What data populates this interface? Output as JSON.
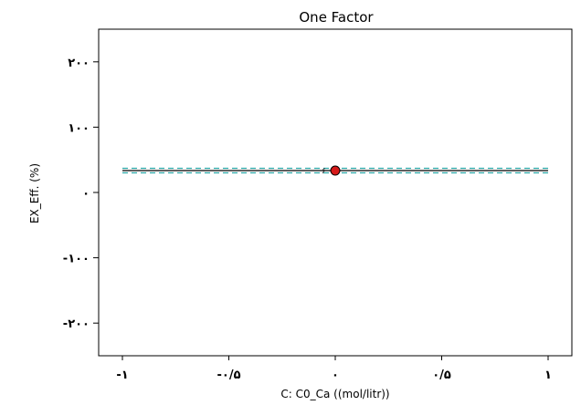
{
  "chart_data": {
    "type": "line",
    "title": "One Factor",
    "xlabel": "C: C0_Ca ((mol/litr))",
    "ylabel": "EX_Eff. (%)",
    "xlim": [
      -1,
      1
    ],
    "ylim": [
      -250,
      250
    ],
    "x_ticks": [
      {
        "value": -1,
        "label": "-١"
      },
      {
        "value": -0.5,
        "label": "-٠/۵"
      },
      {
        "value": 0,
        "label": "٠"
      },
      {
        "value": 0.5,
        "label": "٠/۵"
      },
      {
        "value": 1,
        "label": "١"
      }
    ],
    "y_ticks": [
      {
        "value": 200,
        "label": "٢٠٠"
      },
      {
        "value": 100,
        "label": "١٠٠"
      },
      {
        "value": 0,
        "label": "٠"
      },
      {
        "value": -100,
        "label": "-١٠٠"
      },
      {
        "value": -200,
        "label": "-٢٠٠"
      }
    ],
    "series": [
      {
        "role": "prediction",
        "x": [
          -1,
          1
        ],
        "y": [
          33.5,
          33.5
        ],
        "color": "#000000",
        "style": "solid"
      },
      {
        "role": "upper-band",
        "x": [
          -1,
          1
        ],
        "y": [
          37,
          37
        ],
        "color": "#2aa7a7",
        "style": "dashed"
      },
      {
        "role": "lower-band",
        "x": [
          -1,
          1
        ],
        "y": [
          30,
          30
        ],
        "color": "#2aa7a7",
        "style": "dashed"
      }
    ],
    "points": [
      {
        "x": 0,
        "y": 33.5,
        "label": "۶",
        "color": "#d61a1a"
      }
    ],
    "grid": false,
    "legend": "none"
  }
}
